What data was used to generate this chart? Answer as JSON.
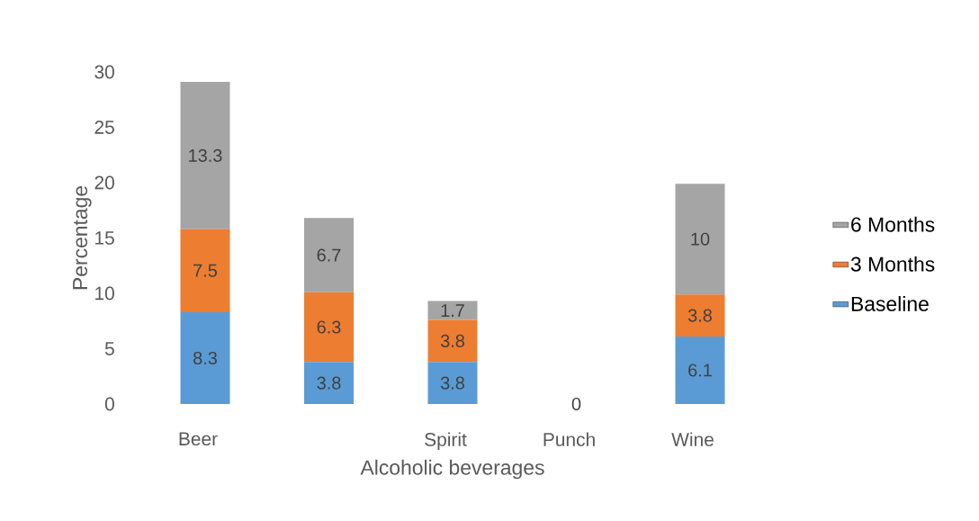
{
  "chart_data": {
    "type": "bar",
    "stacked": true,
    "xlabel": "Alcoholic beverages",
    "ylabel": "Percentage",
    "categories": [
      "Beer",
      null,
      "Spirit",
      "Punch",
      "Wine"
    ],
    "series": [
      {
        "name": "Baseline",
        "color": "#5b9bd5",
        "values": [
          8.3,
          3.8,
          3.8,
          0,
          6.1
        ],
        "value_labels": [
          "8.3",
          "3.8",
          "3.8",
          null,
          "6.1"
        ]
      },
      {
        "name": "3 Months",
        "color": "#ed7d31",
        "values": [
          7.5,
          6.3,
          3.8,
          0,
          3.8
        ],
        "value_labels": [
          "7.5",
          "6.3",
          "3.8",
          null,
          "3.8"
        ]
      },
      {
        "name": "6 Months",
        "color": "#a5a5a5",
        "values": [
          13.3,
          6.7,
          1.7,
          0,
          10
        ],
        "value_labels": [
          "13.3",
          "6.7",
          "1.7",
          "0",
          "10"
        ]
      }
    ],
    "ylim": [
      0,
      30
    ],
    "yticks": [
      0,
      5,
      10,
      15,
      20,
      25,
      30
    ],
    "legend": "right"
  }
}
